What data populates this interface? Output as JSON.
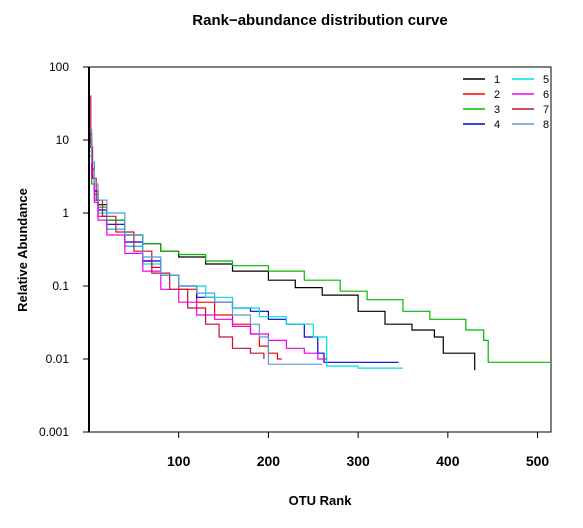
{
  "chart_data": {
    "type": "line",
    "title": "Rank−abundance distribution curve",
    "xlabel": "OTU Rank",
    "ylabel": "Relative Abundance",
    "x_scale": "linear",
    "y_scale": "log",
    "xlim": [
      0,
      515
    ],
    "ylim": [
      0.001,
      100
    ],
    "x_ticks": [
      "100",
      "200",
      "300",
      "400",
      "500"
    ],
    "x_tick_values": [
      100,
      200,
      300,
      400,
      500
    ],
    "y_ticks": [
      "0.001",
      "0.01",
      "0.1",
      "1",
      "10",
      "100"
    ],
    "y_tick_values": [
      0.001,
      0.01,
      0.1,
      1,
      10,
      100
    ],
    "grid": false,
    "legend_position": "top-right",
    "series": [
      {
        "name": "1",
        "color": "#000000",
        "points": [
          [
            1,
            10
          ],
          [
            3,
            3
          ],
          [
            6,
            2
          ],
          [
            10,
            1.3
          ],
          [
            20,
            0.8
          ],
          [
            40,
            0.5
          ],
          [
            60,
            0.38
          ],
          [
            80,
            0.3
          ],
          [
            100,
            0.25
          ],
          [
            130,
            0.2
          ],
          [
            160,
            0.16
          ],
          [
            200,
            0.12
          ],
          [
            230,
            0.095
          ],
          [
            260,
            0.075
          ],
          [
            300,
            0.045
          ],
          [
            330,
            0.03
          ],
          [
            360,
            0.025
          ],
          [
            385,
            0.02
          ],
          [
            395,
            0.012
          ],
          [
            410,
            0.012
          ],
          [
            430,
            0.007
          ]
        ]
      },
      {
        "name": "2",
        "color": "#ff0000",
        "points": [
          [
            1,
            8
          ],
          [
            3,
            3
          ],
          [
            6,
            1.5
          ],
          [
            10,
            0.9
          ],
          [
            20,
            0.6
          ],
          [
            40,
            0.35
          ],
          [
            60,
            0.22
          ],
          [
            70,
            0.18
          ],
          [
            80,
            0.14
          ],
          [
            100,
            0.09
          ],
          [
            120,
            0.06
          ],
          [
            140,
            0.04
          ],
          [
            160,
            0.03
          ],
          [
            180,
            0.022
          ],
          [
            190,
            0.015
          ],
          [
            200,
            0.012
          ],
          [
            210,
            0.01
          ],
          [
            215,
            0.01
          ]
        ]
      },
      {
        "name": "3",
        "color": "#00bb00",
        "points": [
          [
            1,
            6
          ],
          [
            3,
            2.5
          ],
          [
            6,
            1.8
          ],
          [
            10,
            1.2
          ],
          [
            20,
            0.8
          ],
          [
            40,
            0.5
          ],
          [
            60,
            0.38
          ],
          [
            80,
            0.3
          ],
          [
            100,
            0.27
          ],
          [
            130,
            0.22
          ],
          [
            160,
            0.19
          ],
          [
            200,
            0.16
          ],
          [
            240,
            0.12
          ],
          [
            280,
            0.085
          ],
          [
            310,
            0.065
          ],
          [
            350,
            0.045
          ],
          [
            380,
            0.035
          ],
          [
            420,
            0.025
          ],
          [
            440,
            0.018
          ],
          [
            445,
            0.009
          ],
          [
            515,
            0.009
          ]
        ]
      },
      {
        "name": "4",
        "color": "#0000dd",
        "points": [
          [
            1,
            12
          ],
          [
            3,
            4
          ],
          [
            6,
            2
          ],
          [
            10,
            1.1
          ],
          [
            20,
            0.7
          ],
          [
            40,
            0.4
          ],
          [
            60,
            0.22
          ],
          [
            80,
            0.14
          ],
          [
            100,
            0.1
          ],
          [
            120,
            0.07
          ],
          [
            140,
            0.06
          ],
          [
            160,
            0.05
          ],
          [
            180,
            0.045
          ],
          [
            200,
            0.035
          ],
          [
            220,
            0.03
          ],
          [
            240,
            0.02
          ],
          [
            255,
            0.012
          ],
          [
            262,
            0.009
          ],
          [
            300,
            0.009
          ],
          [
            345,
            0.009
          ]
        ]
      },
      {
        "name": "5",
        "color": "#00dddd",
        "points": [
          [
            1,
            7
          ],
          [
            3,
            3
          ],
          [
            6,
            1.5
          ],
          [
            10,
            1
          ],
          [
            20,
            0.6
          ],
          [
            40,
            0.35
          ],
          [
            60,
            0.2
          ],
          [
            80,
            0.14
          ],
          [
            100,
            0.1
          ],
          [
            130,
            0.07
          ],
          [
            160,
            0.05
          ],
          [
            190,
            0.038
          ],
          [
            220,
            0.03
          ],
          [
            250,
            0.02
          ],
          [
            265,
            0.008
          ],
          [
            300,
            0.0075
          ],
          [
            350,
            0.0075
          ]
        ]
      },
      {
        "name": "6",
        "color": "#ee00ee",
        "points": [
          [
            1,
            9
          ],
          [
            3,
            3
          ],
          [
            6,
            1.4
          ],
          [
            10,
            0.8
          ],
          [
            20,
            0.5
          ],
          [
            40,
            0.28
          ],
          [
            60,
            0.16
          ],
          [
            80,
            0.09
          ],
          [
            100,
            0.06
          ],
          [
            120,
            0.04
          ],
          [
            140,
            0.035
          ],
          [
            160,
            0.028
          ],
          [
            180,
            0.022
          ],
          [
            200,
            0.018
          ],
          [
            220,
            0.014
          ],
          [
            240,
            0.012
          ],
          [
            255,
            0.01
          ],
          [
            265,
            0.01
          ]
        ]
      },
      {
        "name": "7",
        "color": "#c8102e",
        "points": [
          [
            1,
            40
          ],
          [
            2,
            8
          ],
          [
            4,
            3
          ],
          [
            8,
            1.5
          ],
          [
            15,
            0.9
          ],
          [
            30,
            0.55
          ],
          [
            50,
            0.3
          ],
          [
            70,
            0.15
          ],
          [
            90,
            0.09
          ],
          [
            110,
            0.05
          ],
          [
            130,
            0.03
          ],
          [
            145,
            0.02
          ],
          [
            160,
            0.014
          ],
          [
            180,
            0.012
          ],
          [
            195,
            0.01
          ]
        ]
      },
      {
        "name": "8",
        "color": "#5a9bd5",
        "points": [
          [
            1,
            14
          ],
          [
            3,
            5
          ],
          [
            6,
            2.5
          ],
          [
            10,
            1.5
          ],
          [
            20,
            1
          ],
          [
            40,
            0.5
          ],
          [
            60,
            0.25
          ],
          [
            80,
            0.14
          ],
          [
            100,
            0.1
          ],
          [
            120,
            0.08
          ],
          [
            140,
            0.06
          ],
          [
            160,
            0.04
          ],
          [
            180,
            0.03
          ],
          [
            190,
            0.02
          ],
          [
            200,
            0.0085
          ],
          [
            260,
            0.0085
          ]
        ]
      }
    ]
  }
}
